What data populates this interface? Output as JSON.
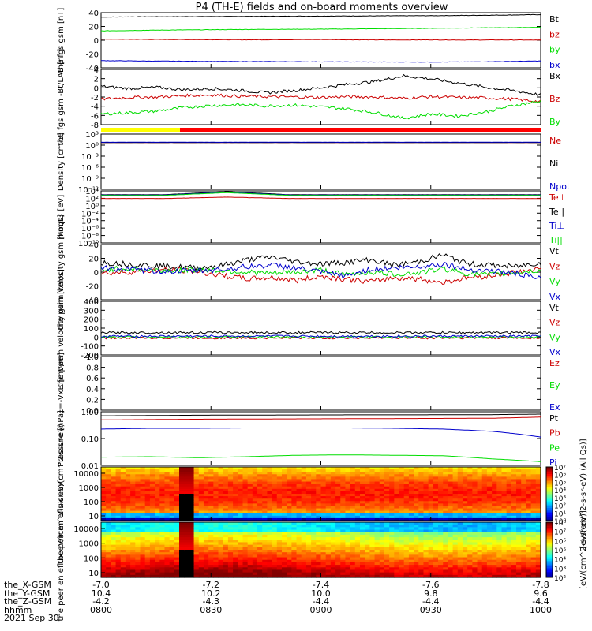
{
  "page": {
    "title": "P4 (TH-E) fields and on-board moments overview",
    "date": "2021 Sep 30"
  },
  "colors": {
    "black": "#000000",
    "red": "#cc0000",
    "green": "#00dd00",
    "blue": "#0000cc",
    "yellow": "#ffff00",
    "barred": "#ff0000"
  },
  "footer": {
    "row_labels": [
      "the_X-GSM",
      "the_Y-GSM",
      "the_Z-GSM",
      "hhmm"
    ],
    "columns": [
      [
        "-7.0",
        "10.4",
        "-4.2",
        "0800"
      ],
      [
        "-7.2",
        "10.2",
        "-4.3",
        "0830"
      ],
      [
        "-7.4",
        "10.0",
        "-4.4",
        "0900"
      ],
      [
        "-7.6",
        "9.8",
        "-4.4",
        "0930"
      ],
      [
        "-7.8",
        "9.6",
        "-4.4",
        "1000"
      ]
    ]
  },
  "chart_data": [
    {
      "type": "line",
      "ylabel": "the fgs gsm [nT]",
      "ylim": [
        -40,
        40
      ],
      "yticks": [
        "40",
        "20",
        "0",
        "-20",
        "-40"
      ],
      "series": [
        {
          "name": "Bt",
          "color": "black",
          "values": [
            33.5,
            34.0,
            34.2,
            34.4,
            34.6,
            34.8,
            35.0,
            35.2,
            35.4,
            35.6,
            36.0,
            36.5,
            37.2
          ]
        },
        {
          "name": "bz",
          "color": "red",
          "values": [
            1.5,
            1.2,
            1.0,
            0.8,
            0.6,
            0.8,
            1.0,
            0.6,
            0.4,
            0.5,
            0.3,
            0.4,
            0.2
          ]
        },
        {
          "name": "by",
          "color": "green",
          "values": [
            13.5,
            14.2,
            14.8,
            15.2,
            15.6,
            15.8,
            16.0,
            16.4,
            16.8,
            17.3,
            17.8,
            18.2,
            18.8
          ]
        },
        {
          "name": "bx",
          "color": "blue",
          "values": [
            -29.5,
            -30.0,
            -30.3,
            -30.6,
            -30.8,
            -31.0,
            -31.2,
            -31.4,
            -31.5,
            -31.6,
            -31.4,
            -30.8,
            -30.0
          ]
        }
      ]
    },
    {
      "type": "line",
      "ylabel": "the fgs gsm -Bt/LAB [nT]",
      "ylim": [
        -9,
        4
      ],
      "yticks": [
        "4",
        "2",
        "0",
        "-2",
        "-4",
        "-6",
        "-8"
      ],
      "series": [
        {
          "name": "Bx",
          "color": "black",
          "values": [
            0.0,
            -0.5,
            -0.2,
            -0.8,
            -0.5,
            -0.9,
            -1.5,
            -1.0,
            -0.3,
            0.5,
            1.2,
            2.5,
            1.8,
            0.8,
            -0.2,
            -1.0,
            -2.0
          ]
        },
        {
          "name": "Bz",
          "color": "red",
          "values": [
            -3.0,
            -2.6,
            -2.5,
            -2.2,
            -2.0,
            -2.3,
            -2.4,
            -2.5,
            -2.6,
            -2.4,
            -2.5,
            -2.8,
            -2.4,
            -2.6,
            -2.7,
            -3.0,
            -3.6
          ]
        },
        {
          "name": "By",
          "color": "green",
          "values": [
            -6.5,
            -6.2,
            -5.8,
            -5.0,
            -4.5,
            -4.3,
            -4.6,
            -4.4,
            -4.8,
            -5.3,
            -6.2,
            -7.5,
            -6.5,
            -7.0,
            -6.0,
            -4.5,
            -3.5
          ]
        }
      ]
    },
    {
      "type": "line",
      "ylabel": "Density [cm-3]",
      "ylim": [
        -14,
        3
      ],
      "log": true,
      "yticks": [
        "10³",
        "10⁰",
        "10⁻³",
        "10⁻⁶",
        "10⁻⁹",
        "10⁻¹²"
      ],
      "series": [
        {
          "name": "Ne",
          "color": "red",
          "values": [
            0.4,
            0.4,
            0.4,
            0.4,
            0.4
          ]
        },
        {
          "name": "Ni",
          "color": "black",
          "values": [
            0.4,
            0.4,
            0.4,
            0.4,
            0.4
          ]
        },
        {
          "name": "Npot",
          "color": "blue",
          "values": [
            0.5,
            0.5,
            0.5,
            0.5,
            0.5
          ]
        }
      ]
    },
    {
      "type": "line",
      "ylabel": "moqt3 [eV]",
      "ylim": [
        -10,
        5
      ],
      "log": true,
      "yticks": [
        "10⁴",
        "10²",
        "10⁰",
        "10⁻²",
        "10⁻⁴",
        "10⁻⁶",
        "10⁻⁸",
        "10⁻¹⁰"
      ],
      "series": [
        {
          "name": "Te⊥",
          "color": "red",
          "values": [
            2.8,
            2.8,
            3.2,
            2.8,
            2.8,
            2.8,
            2.8,
            2.8
          ]
        },
        {
          "name": "Te||",
          "color": "black",
          "values": [
            3.9,
            3.9,
            4.8,
            3.9,
            3.9,
            3.9,
            3.9,
            3.9
          ]
        },
        {
          "name": "Ti⊥",
          "color": "blue",
          "values": [
            3.8,
            3.8,
            4.6,
            3.8,
            3.8,
            3.8,
            3.8,
            3.8
          ]
        },
        {
          "name": "Ti||",
          "color": "green",
          "values": [
            3.7,
            3.7,
            4.5,
            3.7,
            3.7,
            3.7,
            3.7,
            3.7
          ]
        }
      ]
    },
    {
      "type": "line",
      "ylabel": "the peim velocity gsm [km/s]",
      "ylim": [
        -40,
        40
      ],
      "yticks": [
        "40",
        "20",
        "0",
        "-20",
        "-40"
      ],
      "series": [
        {
          "name": "Vt",
          "color": "black",
          "values": [
            14,
            12,
            10,
            8,
            6,
            10,
            18,
            22,
            15,
            12,
            14,
            18,
            10,
            15,
            25,
            12,
            10,
            8,
            14
          ]
        },
        {
          "name": "Vz",
          "color": "red",
          "values": [
            -2,
            0,
            2,
            4,
            0,
            -5,
            -10,
            -8,
            -12,
            -6,
            -10,
            -14,
            -8,
            -10,
            -15,
            -8,
            -5,
            0,
            4
          ]
        },
        {
          "name": "Vy",
          "color": "green",
          "values": [
            4,
            5,
            3,
            2,
            4,
            2,
            0,
            -2,
            0,
            3,
            -4,
            0,
            -3,
            -1,
            5,
            -2,
            -4,
            0,
            2
          ]
        },
        {
          "name": "Vx",
          "color": "blue",
          "values": [
            6,
            4,
            2,
            1,
            2,
            4,
            8,
            10,
            6,
            0,
            -6,
            4,
            6,
            8,
            12,
            4,
            2,
            -2,
            -10
          ]
        }
      ]
    },
    {
      "type": "line",
      "ylabel": "the peem velocity gsm [km/s]",
      "ylim": [
        -200,
        400
      ],
      "yticks": [
        "400",
        "300",
        "200",
        "100",
        "0",
        "-100",
        "-200"
      ],
      "series": [
        {
          "name": "Vt",
          "color": "black",
          "values": [
            50,
            50,
            50,
            50,
            50,
            50,
            50,
            50,
            50
          ]
        },
        {
          "name": "Vz",
          "color": "red",
          "values": [
            -10,
            -10,
            -10,
            -10,
            -10,
            -10,
            -10,
            -10,
            -10
          ]
        },
        {
          "name": "Vy",
          "color": "green",
          "values": [
            0,
            0,
            0,
            0,
            0,
            0,
            0,
            0,
            0
          ]
        },
        {
          "name": "Vx",
          "color": "blue",
          "values": [
            10,
            10,
            10,
            10,
            10,
            10,
            10,
            10,
            10
          ]
        }
      ]
    },
    {
      "type": "line",
      "ylabel": "E=-VxB [mV/m]",
      "ylim": [
        0,
        1
      ],
      "yticks": [
        "1.0",
        "0.8",
        "0.6",
        "0.4",
        "0.2",
        "0.0"
      ],
      "series": [
        {
          "name": "Ez",
          "color": "red",
          "values": []
        },
        {
          "name": "Ey",
          "color": "green",
          "values": []
        },
        {
          "name": "Ex",
          "color": "blue",
          "values": []
        }
      ]
    },
    {
      "type": "line",
      "ylabel": "Pressure [nPa]",
      "ylim": [
        0.01,
        1.3
      ],
      "log": true,
      "yticks": [
        "1.00",
        "0.10",
        "0.01"
      ],
      "series": [
        {
          "name": "Pt",
          "color": "black",
          "values": [
            0.9,
            0.92,
            0.95,
            0.96,
            0.97,
            0.98,
            0.98,
            0.99,
            1.0,
            1.05
          ]
        },
        {
          "name": "Pb",
          "color": "red",
          "values": [
            0.62,
            0.64,
            0.66,
            0.67,
            0.68,
            0.69,
            0.7,
            0.71,
            0.72,
            0.8
          ]
        },
        {
          "name": "Pe",
          "color": "green",
          "values": [
            0.021,
            0.022,
            0.02,
            0.022,
            0.025,
            0.026,
            0.025,
            0.024,
            0.018,
            0.014
          ]
        },
        {
          "name": "Pi",
          "color": "blue",
          "values": [
            0.27,
            0.29,
            0.29,
            0.3,
            0.3,
            0.3,
            0.29,
            0.27,
            0.22,
            0.13
          ]
        }
      ]
    },
    {
      "type": "heatmap",
      "ylabel": "the peir en eflux eV/(cm^2-s-sr-eV)",
      "yticks": [
        "10000",
        "1000",
        "100",
        "10"
      ],
      "colorbar_ticks": [
        "10⁷",
        "10⁶",
        "10⁵",
        "10⁴",
        "10³",
        "10²",
        "10¹",
        "10⁰"
      ],
      "colorbar_label": "[eV/(cm^2-s-sr-eV) (All Qs)]"
    },
    {
      "type": "heatmap",
      "ylabel": "the peer en eflux eV/(cm^2-s-sr-eV)",
      "yticks": [
        "10000",
        "1000",
        "100",
        "10"
      ],
      "colorbar_ticks": [
        "10⁸",
        "10⁷",
        "10⁶",
        "10⁵",
        "10⁴",
        "10³",
        "10²"
      ],
      "colorbar_label": "[eV/(cm^2-s-sr-eV)]"
    }
  ]
}
